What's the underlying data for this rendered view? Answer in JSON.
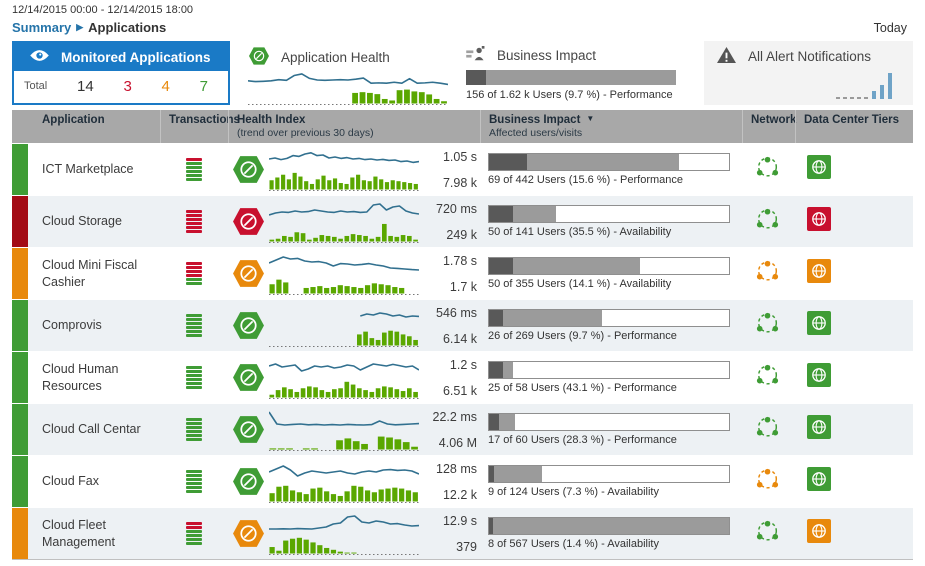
{
  "colors": {
    "green": "#3f9c35",
    "orange": "#e8890c",
    "red": "#c8102e",
    "strip_red": "#a30b15",
    "accent_blue": "#1a7ac6",
    "line_blue": "#31708f",
    "bar_green": "#5aa700",
    "impact_dark": "#595959",
    "impact_gray": "#9b9b9b",
    "alert_bar_blue": "#6fa3c7"
  },
  "header": {
    "date_range": "12/14/2015 00:00 - 12/14/2015 18:00",
    "breadcrumb_link": "Summary",
    "breadcrumb_current": "Applications",
    "today_label": "Today"
  },
  "panels": {
    "monitored": {
      "title": "Monitored Applications",
      "total_label": "Total",
      "total": "14",
      "critical": "3",
      "warning": "4",
      "normal": "7"
    },
    "health": {
      "title": "Application Health",
      "trend_line": [
        0.45,
        0.4,
        0.42,
        0.45,
        0.52,
        0.48,
        0.78,
        0.88,
        0.6,
        0.5,
        0.48,
        0.5,
        0.52,
        0.5,
        0.55,
        0.62,
        0.3,
        0.32,
        0.3,
        0.36,
        0.3,
        0.58,
        0.3,
        0.32,
        0.36,
        0.3,
        0.22
      ],
      "trend_bars": [
        0,
        0,
        0,
        0,
        0,
        0,
        0,
        0,
        0,
        0,
        0,
        0,
        0,
        0,
        0.7,
        0.75,
        0.7,
        0.62,
        0.3,
        0.2,
        0.88,
        0.92,
        0.8,
        0.75,
        0.6,
        0.3,
        0.15
      ]
    },
    "impact": {
      "title": "Business Impact",
      "caption": "156 of 1.62 k Users (9.7 %) - Performance",
      "dark_pct": 9.7,
      "gray_pct": 100
    },
    "alerts": {
      "title": "All Alert Notifications",
      "dash_count": 5,
      "bars": [
        0.3,
        0.55,
        1
      ]
    }
  },
  "table": {
    "columns": {
      "application": "Application",
      "transactions": "Transactions",
      "health_index": "Health Index",
      "health_index_sub": "(trend over previous 30 days)",
      "business_impact": "Business Impact",
      "business_impact_sub": "Affected users/visits",
      "network": "Network",
      "data_center_tiers": "Data Center Tiers"
    },
    "rows": [
      {
        "name": "ICT Marketplace",
        "severity": "green",
        "transactions": [
          "red",
          "green",
          "green",
          "green",
          "green",
          "green"
        ],
        "health": "green",
        "response_time": "1.05 s",
        "volume": "7.98 k",
        "impact_caption": "69 of 442 Users (15.6 %) - Performance",
        "impact_dark_pct": 16,
        "impact_gray_pct": 79,
        "network": "green",
        "data_center": "green",
        "trend_line": [
          0.55,
          0.6,
          0.52,
          0.58,
          0.72,
          0.68,
          0.8,
          0.86,
          0.72,
          0.75,
          0.6,
          0.65,
          0.58,
          0.62,
          0.55,
          0.58,
          0.52,
          0.55,
          0.5,
          0.53,
          0.48,
          0.5,
          0.42,
          0.45,
          0.38,
          0.42
        ],
        "trend_bars": [
          0.5,
          0.65,
          0.8,
          0.55,
          0.9,
          0.7,
          0.45,
          0.3,
          0.55,
          0.75,
          0.5,
          0.6,
          0.35,
          0.3,
          0.65,
          0.8,
          0.5,
          0.45,
          0.7,
          0.55,
          0.4,
          0.5,
          0.45,
          0.4,
          0.35,
          0.3
        ]
      },
      {
        "name": "Cloud Storage",
        "severity": "red",
        "transactions": [
          "red",
          "red",
          "red",
          "red",
          "red",
          "red"
        ],
        "health": "red",
        "response_time": "720 ms",
        "volume": "249 k",
        "impact_caption": "50 of 141 Users (35.5 %) - Availability",
        "impact_dark_pct": 10,
        "impact_gray_pct": 28,
        "network": "green",
        "data_center": "red",
        "trend_line": [
          0.35,
          0.45,
          0.5,
          0.48,
          0.55,
          0.5,
          0.52,
          0.6,
          0.55,
          0.5,
          0.48,
          0.55,
          0.5,
          0.52,
          0.48,
          0.5,
          0.85,
          0.9,
          0.6,
          0.75,
          0.8,
          0.55,
          0.45,
          0.4
        ],
        "trend_bars": [
          0.1,
          0.15,
          0.3,
          0.25,
          0.5,
          0.45,
          0.1,
          0.2,
          0.35,
          0.3,
          0.25,
          0.15,
          0.3,
          0.4,
          0.35,
          0.3,
          0.15,
          0.25,
          0.95,
          0.3,
          0.25,
          0.35,
          0.3,
          0.1
        ]
      },
      {
        "name": "Cloud Mini Fiscal Cashier",
        "severity": "orange",
        "transactions": [
          "red",
          "red",
          "red",
          "red",
          "green",
          "green"
        ],
        "health": "orange",
        "response_time": "1.78 s",
        "volume": "1.7 k",
        "impact_caption": "50 of 355 Users (14.1 %) - Availability",
        "impact_dark_pct": 10,
        "impact_gray_pct": 63,
        "network": "orange",
        "data_center": "orange",
        "trend_line": [
          0.55,
          0.7,
          0.85,
          0.75,
          0.78,
          0.65,
          0.6,
          0.62,
          0.55,
          0.4,
          0.52,
          0.5,
          0.45,
          0.48,
          0.52,
          0.45,
          0.4,
          0.3,
          0.28,
          0.25,
          0.22,
          0.2
        ],
        "trend_bars": [
          0.5,
          0.75,
          0.6,
          0,
          0,
          0.3,
          0.35,
          0.4,
          0.3,
          0.35,
          0.45,
          0.4,
          0.35,
          0.3,
          0.45,
          0.55,
          0.5,
          0.45,
          0.35,
          0.3,
          0,
          0
        ]
      },
      {
        "name": "Comprovis",
        "severity": "green",
        "transactions": [
          "green",
          "green",
          "green",
          "green",
          "green",
          "green"
        ],
        "health": "green",
        "response_time": "546 ms",
        "volume": "6.14 k",
        "impact_caption": "26 of 269 Users (9.7 %) - Performance",
        "impact_dark_pct": 6,
        "impact_gray_pct": 47,
        "network": "green",
        "data_center": "green",
        "trend_line": [
          null,
          null,
          null,
          null,
          null,
          null,
          null,
          null,
          null,
          null,
          null,
          null,
          null,
          null,
          0.5,
          0.6,
          0.55,
          0.65,
          0.6,
          0.5,
          0.55,
          0.45,
          0.5,
          0.48
        ],
        "trend_bars": [
          0,
          0,
          0,
          0,
          0,
          0,
          0,
          0,
          0,
          0,
          0,
          0,
          0,
          0,
          0.6,
          0.75,
          0.4,
          0.3,
          0.7,
          0.8,
          0.75,
          0.6,
          0.5,
          0.3
        ]
      },
      {
        "name": "Cloud Human Resources",
        "severity": "green",
        "transactions": [
          "green",
          "green",
          "green",
          "green",
          "green",
          "green"
        ],
        "health": "green",
        "response_time": "1.2 s",
        "volume": "6.51 k",
        "impact_caption": "25 of 58 Users (43.1 %) - Performance",
        "impact_dark_pct": 6,
        "impact_gray_pct": 10,
        "network": "green",
        "data_center": "green",
        "trend_line": [
          0.6,
          0.7,
          0.55,
          0.6,
          0.65,
          0.35,
          0.45,
          0.6,
          0.55,
          0.6,
          0.5,
          0.55,
          0.65,
          0.6,
          0.4,
          0.55,
          0.7,
          0.65,
          0.6,
          0.68,
          0.62,
          0.55,
          0.6,
          0.4
        ],
        "trend_bars": [
          0.15,
          0.4,
          0.55,
          0.45,
          0.3,
          0.5,
          0.6,
          0.55,
          0.4,
          0.3,
          0.45,
          0.5,
          0.85,
          0.7,
          0.5,
          0.4,
          0.3,
          0.5,
          0.6,
          0.55,
          0.45,
          0.35,
          0.5,
          0.3
        ]
      },
      {
        "name": "Cloud Call Centar",
        "severity": "green",
        "transactions": [
          "green",
          "green",
          "green",
          "green",
          "green",
          "green"
        ],
        "health": "green",
        "response_time": "22.2 ms",
        "volume": "4.06 M",
        "impact_caption": "17 of 60 Users (28.3 %) - Performance",
        "impact_dark_pct": 4,
        "impact_gray_pct": 11,
        "network": "green",
        "data_center": "green",
        "trend_line": [
          0.9,
          0.3,
          0.25,
          0.28,
          0.3,
          0.26,
          0.28,
          0.25,
          0.27,
          0.25,
          0.28,
          0.26,
          0.25,
          0.27,
          0.45,
          0.3,
          0.26,
          0.28,
          0.3,
          0.32
        ],
        "trend_bars": [
          0.06,
          0.06,
          0.06,
          0,
          0.06,
          0.06,
          0,
          0,
          0.5,
          0.6,
          0.45,
          0.3,
          0,
          0.7,
          0.65,
          0.55,
          0.4,
          0.15
        ]
      },
      {
        "name": "Cloud Fax",
        "severity": "green",
        "transactions": [
          "green",
          "green",
          "green",
          "green",
          "green",
          "green"
        ],
        "health": "green",
        "response_time": "128 ms",
        "volume": "12.2 k",
        "impact_caption": "9 of 124 Users (7.3 %) - Availability",
        "impact_dark_pct": 2,
        "impact_gray_pct": 22,
        "network": "orange",
        "data_center": "green",
        "trend_line": [
          0.5,
          0.65,
          0.8,
          0.6,
          0.3,
          0.45,
          0.55,
          0.5,
          0.45,
          0.5,
          0.55,
          0.45,
          0.4,
          0.5,
          0.55,
          0.5,
          0.6,
          0.62,
          0.58,
          0.6,
          0.55,
          0.4
        ],
        "trend_bars": [
          0.45,
          0.8,
          0.85,
          0.6,
          0.5,
          0.4,
          0.7,
          0.75,
          0.55,
          0.4,
          0.3,
          0.55,
          0.85,
          0.8,
          0.6,
          0.5,
          0.65,
          0.7,
          0.75,
          0.7,
          0.6,
          0.5
        ]
      },
      {
        "name": "Cloud Fleet Management",
        "severity": "orange",
        "transactions": [
          "red",
          "red",
          "green",
          "green",
          "green",
          "green"
        ],
        "health": "orange",
        "response_time": "12.9 s",
        "volume": "379",
        "impact_caption": "8 of 567 Users (1.4 %) - Availability",
        "impact_dark_pct": 1.5,
        "impact_gray_pct": 100,
        "network": "green",
        "data_center": "orange",
        "trend_line": [
          0.25,
          0.25,
          0.26,
          0.25,
          0.27,
          0.26,
          0.25,
          0.3,
          0.35,
          0.5,
          0.55,
          0.85,
          0.9,
          0.6,
          0.55,
          0.65,
          0.6,
          0.5,
          0.52,
          0.45,
          0.4,
          0.42
        ],
        "trend_bars": [
          0.35,
          0.15,
          0.7,
          0.8,
          0.85,
          0.75,
          0.6,
          0.45,
          0.3,
          0.2,
          0.1,
          0.05,
          0.05,
          0,
          0,
          0,
          0,
          0,
          0,
          0,
          0,
          0
        ]
      }
    ]
  }
}
